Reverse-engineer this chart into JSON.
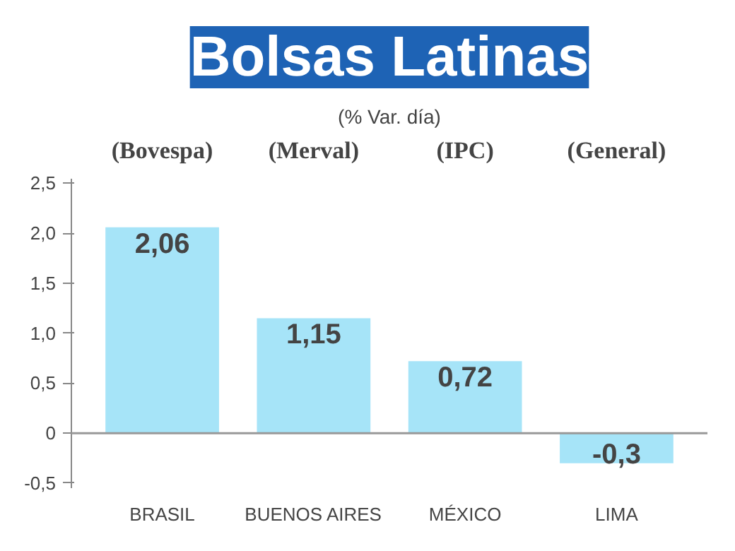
{
  "chart_data": {
    "type": "bar",
    "title": "Bolsas Latinas",
    "subtitle": "(% Var. día)",
    "categories": [
      "BRASIL",
      "BUENOS AIRES",
      "MÉXICO",
      "LIMA"
    ],
    "values": [
      2.06,
      1.15,
      0.72,
      -0.3
    ],
    "value_labels": [
      "2,06",
      "1,15",
      "0,72",
      "-0,3"
    ],
    "color": "#a6e4f8",
    "ylim": [
      -0.55,
      2.55
    ],
    "yticks": [
      {
        "value": -0.5,
        "label": "-0,5"
      },
      {
        "value": 0,
        "label": "0"
      },
      {
        "value": 0.5,
        "label": "0,5"
      },
      {
        "value": 1,
        "label": "1,0"
      },
      {
        "value": 1.5,
        "label": "1,5"
      },
      {
        "value": 2,
        "label": "2,0"
      },
      {
        "value": 2.5,
        "label": "2,5"
      }
    ],
    "ref_lines": [
      {
        "axis": "y",
        "value": 0,
        "color": "#999999"
      }
    ],
    "annotations": [
      "(Bovespa)",
      "(Merval)",
      "(IPC)",
      "(General)"
    ],
    "grid": false
  }
}
